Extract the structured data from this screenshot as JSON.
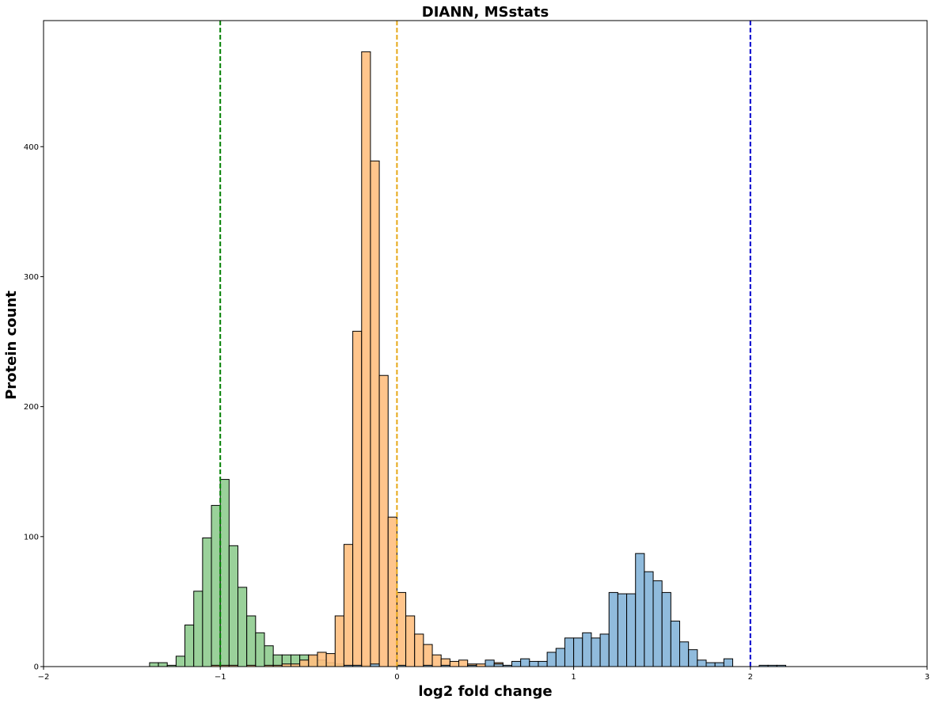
{
  "chart_data": {
    "type": "histogram",
    "title": "DIANN, MSstats",
    "xlabel": "log2 fold change",
    "ylabel": "Protein count",
    "xlim": [
      -2,
      3
    ],
    "ylim": [
      0,
      497
    ],
    "xticks": [
      -2,
      -1,
      0,
      1,
      2,
      3
    ],
    "yticks": [
      0,
      100,
      200,
      300,
      400
    ],
    "bin_width": 0.05,
    "grid": false,
    "series": [
      {
        "color": "#8fcc8f",
        "bins": [
          {
            "x0": -1.4,
            "count": 3
          },
          {
            "x0": -1.35,
            "count": 3
          },
          {
            "x0": -1.3,
            "count": 1
          },
          {
            "x0": -1.25,
            "count": 8
          },
          {
            "x0": -1.2,
            "count": 32
          },
          {
            "x0": -1.15,
            "count": 58
          },
          {
            "x0": -1.1,
            "count": 99
          },
          {
            "x0": -1.05,
            "count": 124
          },
          {
            "x0": -1.0,
            "count": 144
          },
          {
            "x0": -0.95,
            "count": 93
          },
          {
            "x0": -0.9,
            "count": 61
          },
          {
            "x0": -0.85,
            "count": 39
          },
          {
            "x0": -0.8,
            "count": 26
          },
          {
            "x0": -0.75,
            "count": 16
          },
          {
            "x0": -0.7,
            "count": 9
          },
          {
            "x0": -0.65,
            "count": 9
          },
          {
            "x0": -0.6,
            "count": 9
          },
          {
            "x0": -0.55,
            "count": 9
          },
          {
            "x0": -0.5,
            "count": 8
          },
          {
            "x0": -0.45,
            "count": 5
          },
          {
            "x0": -0.4,
            "count": 3
          },
          {
            "x0": -0.35,
            "count": 2
          },
          {
            "x0": -0.3,
            "count": 1
          },
          {
            "x0": -0.25,
            "count": 1
          },
          {
            "x0": -0.2,
            "count": 1
          },
          {
            "x0": -0.15,
            "count": 1
          }
        ]
      },
      {
        "color": "#ffbf80",
        "bins": [
          {
            "x0": -1.4,
            "count": 0
          },
          {
            "x0": -1.05,
            "count": 1
          },
          {
            "x0": -1.0,
            "count": 1
          },
          {
            "x0": -0.95,
            "count": 1
          },
          {
            "x0": -0.85,
            "count": 1
          },
          {
            "x0": -0.75,
            "count": 1
          },
          {
            "x0": -0.7,
            "count": 1
          },
          {
            "x0": -0.65,
            "count": 2
          },
          {
            "x0": -0.6,
            "count": 2
          },
          {
            "x0": -0.55,
            "count": 5
          },
          {
            "x0": -0.5,
            "count": 9
          },
          {
            "x0": -0.45,
            "count": 11
          },
          {
            "x0": -0.4,
            "count": 10
          },
          {
            "x0": -0.35,
            "count": 39
          },
          {
            "x0": -0.3,
            "count": 94
          },
          {
            "x0": -0.25,
            "count": 258
          },
          {
            "x0": -0.2,
            "count": 473
          },
          {
            "x0": -0.15,
            "count": 389
          },
          {
            "x0": -0.1,
            "count": 224
          },
          {
            "x0": -0.05,
            "count": 115
          },
          {
            "x0": 0.0,
            "count": 57
          },
          {
            "x0": 0.05,
            "count": 39
          },
          {
            "x0": 0.1,
            "count": 25
          },
          {
            "x0": 0.15,
            "count": 17
          },
          {
            "x0": 0.2,
            "count": 9
          },
          {
            "x0": 0.25,
            "count": 6
          },
          {
            "x0": 0.3,
            "count": 4
          },
          {
            "x0": 0.35,
            "count": 5
          },
          {
            "x0": 0.4,
            "count": 2
          },
          {
            "x0": 0.45,
            "count": 2
          },
          {
            "x0": 0.5,
            "count": 1
          },
          {
            "x0": 0.55,
            "count": 3
          }
        ]
      },
      {
        "color": "#84b4d8",
        "bins": [
          {
            "x0": -0.3,
            "count": 1
          },
          {
            "x0": -0.25,
            "count": 1
          },
          {
            "x0": -0.15,
            "count": 2
          },
          {
            "x0": 0.0,
            "count": 1
          },
          {
            "x0": 0.15,
            "count": 1
          },
          {
            "x0": 0.25,
            "count": 1
          },
          {
            "x0": 0.4,
            "count": 1
          },
          {
            "x0": 0.5,
            "count": 5
          },
          {
            "x0": 0.55,
            "count": 2
          },
          {
            "x0": 0.6,
            "count": 1
          },
          {
            "x0": 0.65,
            "count": 4
          },
          {
            "x0": 0.7,
            "count": 6
          },
          {
            "x0": 0.75,
            "count": 4
          },
          {
            "x0": 0.8,
            "count": 4
          },
          {
            "x0": 0.85,
            "count": 11
          },
          {
            "x0": 0.9,
            "count": 14
          },
          {
            "x0": 0.95,
            "count": 22
          },
          {
            "x0": 1.0,
            "count": 22
          },
          {
            "x0": 1.05,
            "count": 26
          },
          {
            "x0": 1.1,
            "count": 22
          },
          {
            "x0": 1.15,
            "count": 25
          },
          {
            "x0": 1.2,
            "count": 57
          },
          {
            "x0": 1.25,
            "count": 56
          },
          {
            "x0": 1.3,
            "count": 56
          },
          {
            "x0": 1.35,
            "count": 87
          },
          {
            "x0": 1.4,
            "count": 73
          },
          {
            "x0": 1.45,
            "count": 66
          },
          {
            "x0": 1.5,
            "count": 57
          },
          {
            "x0": 1.55,
            "count": 35
          },
          {
            "x0": 1.6,
            "count": 19
          },
          {
            "x0": 1.65,
            "count": 13
          },
          {
            "x0": 1.7,
            "count": 5
          },
          {
            "x0": 1.75,
            "count": 3
          },
          {
            "x0": 1.8,
            "count": 3
          },
          {
            "x0": 1.85,
            "count": 6
          },
          {
            "x0": 2.05,
            "count": 1
          },
          {
            "x0": 2.1,
            "count": 1
          },
          {
            "x0": 2.15,
            "count": 1
          }
        ]
      }
    ],
    "reference_lines": [
      {
        "x": -1,
        "color": "#008000",
        "style": "dashed"
      },
      {
        "x": 0,
        "color": "#e6a817",
        "style": "dashed"
      },
      {
        "x": 2,
        "color": "#0000cc",
        "style": "dashed"
      }
    ]
  }
}
